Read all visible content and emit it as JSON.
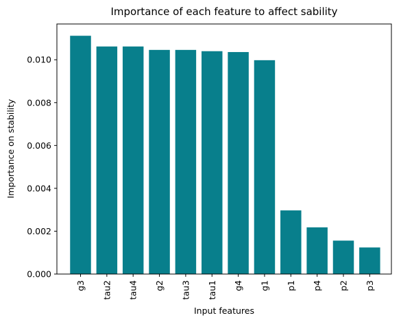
{
  "chart_data": {
    "type": "bar",
    "title": "Importance of each feature to affect sability",
    "xlabel": "Input features",
    "ylabel": "Importance on stability",
    "categories": [
      "g3",
      "tau2",
      "tau4",
      "g2",
      "tau3",
      "tau1",
      "g4",
      "g1",
      "p1",
      "p4",
      "p2",
      "p3"
    ],
    "values": [
      0.01112,
      0.01062,
      0.01062,
      0.01046,
      0.01046,
      0.0104,
      0.01036,
      0.00998,
      0.00297,
      0.00218,
      0.00156,
      0.00124
    ],
    "yticks": [
      "0.000",
      "0.002",
      "0.004",
      "0.006",
      "0.008",
      "0.010"
    ],
    "ylim": [
      0,
      0.01167
    ],
    "bar_color": "#087f8c",
    "grid": false,
    "legend": "none"
  }
}
